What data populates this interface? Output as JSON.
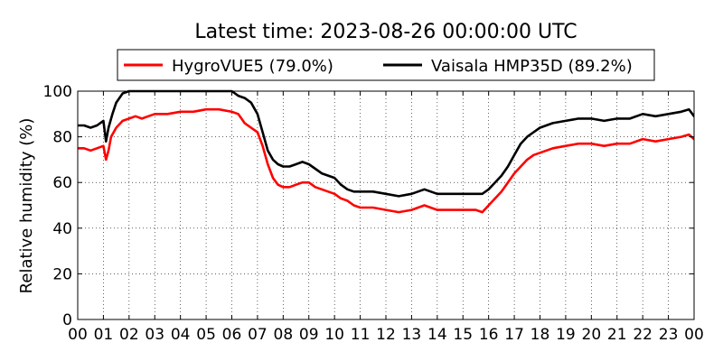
{
  "chart_data": {
    "type": "line",
    "title": "Latest time: 2023-08-26 00:00:00 UTC",
    "xlabel": "",
    "ylabel": "Relative humidity (%)",
    "xlim": [
      0,
      24
    ],
    "ylim": [
      0,
      100
    ],
    "yticks": [
      "0",
      "20",
      "40",
      "60",
      "80",
      "100"
    ],
    "xticks": [
      "00",
      "01",
      "02",
      "03",
      "04",
      "05",
      "06",
      "07",
      "08",
      "09",
      "10",
      "11",
      "12",
      "13",
      "14",
      "15",
      "16",
      "17",
      "18",
      "19",
      "20",
      "21",
      "22",
      "23",
      "00"
    ],
    "grid": true,
    "legend_position": "top",
    "series": [
      {
        "name": "HygroVUE5 (79.0%)",
        "color": "#ff0000",
        "x": [
          0,
          0.25,
          0.5,
          0.75,
          1.0,
          1.1,
          1.2,
          1.3,
          1.5,
          1.75,
          2.0,
          2.25,
          2.5,
          2.75,
          3.0,
          3.5,
          4.0,
          4.5,
          5.0,
          5.5,
          6.0,
          6.25,
          6.5,
          6.75,
          7.0,
          7.2,
          7.4,
          7.6,
          7.8,
          8.0,
          8.25,
          8.5,
          8.75,
          9.0,
          9.25,
          9.5,
          9.75,
          10.0,
          10.25,
          10.5,
          10.75,
          11.0,
          11.5,
          12.0,
          12.5,
          13.0,
          13.5,
          14.0,
          14.5,
          15.0,
          15.5,
          15.75,
          16.0,
          16.25,
          16.5,
          16.75,
          17.0,
          17.25,
          17.5,
          17.75,
          18.0,
          18.5,
          19.0,
          19.5,
          20.0,
          20.5,
          21.0,
          21.5,
          22.0,
          22.5,
          23.0,
          23.5,
          23.8,
          24.0
        ],
        "values": [
          75,
          75,
          74,
          75,
          76,
          70,
          74,
          80,
          84,
          87,
          88,
          89,
          88,
          89,
          90,
          90,
          91,
          91,
          92,
          92,
          91,
          90,
          86,
          84,
          82,
          76,
          68,
          62,
          59,
          58,
          58,
          59,
          60,
          60,
          58,
          57,
          56,
          55,
          53,
          52,
          50,
          49,
          49,
          48,
          47,
          48,
          50,
          48,
          48,
          48,
          48,
          47,
          50,
          53,
          56,
          60,
          64,
          67,
          70,
          72,
          73,
          75,
          76,
          77,
          77,
          76,
          77,
          77,
          79,
          78,
          79,
          80,
          81,
          79
        ]
      },
      {
        "name": "Vaisala HMP35D (89.2%)",
        "color": "#000000",
        "x": [
          0,
          0.25,
          0.5,
          0.75,
          1.0,
          1.1,
          1.2,
          1.35,
          1.5,
          1.75,
          2.0,
          2.25,
          2.5,
          2.75,
          3.0,
          3.5,
          4.0,
          4.5,
          5.0,
          5.5,
          6.0,
          6.25,
          6.5,
          6.75,
          7.0,
          7.2,
          7.4,
          7.6,
          7.8,
          8.0,
          8.25,
          8.5,
          8.75,
          9.0,
          9.25,
          9.5,
          9.75,
          10.0,
          10.25,
          10.5,
          10.75,
          11.0,
          11.5,
          12.0,
          12.5,
          13.0,
          13.5,
          14.0,
          14.5,
          15.0,
          15.5,
          15.75,
          16.0,
          16.25,
          16.5,
          16.75,
          17.0,
          17.25,
          17.5,
          17.75,
          18.0,
          18.5,
          19.0,
          19.5,
          20.0,
          20.5,
          21.0,
          21.5,
          22.0,
          22.5,
          23.0,
          23.5,
          23.8,
          24.0
        ],
        "values": [
          85,
          85,
          84,
          85,
          87,
          78,
          84,
          90,
          95,
          99,
          100,
          100,
          100,
          100,
          100,
          100,
          100,
          100,
          100,
          100,
          100,
          98,
          97,
          95,
          90,
          82,
          74,
          70,
          68,
          67,
          67,
          68,
          69,
          68,
          66,
          64,
          63,
          62,
          59,
          57,
          56,
          56,
          56,
          55,
          54,
          55,
          57,
          55,
          55,
          55,
          55,
          55,
          57,
          60,
          63,
          67,
          72,
          77,
          80,
          82,
          84,
          86,
          87,
          88,
          88,
          87,
          88,
          88,
          90,
          89,
          90,
          91,
          92,
          89
        ]
      }
    ]
  }
}
